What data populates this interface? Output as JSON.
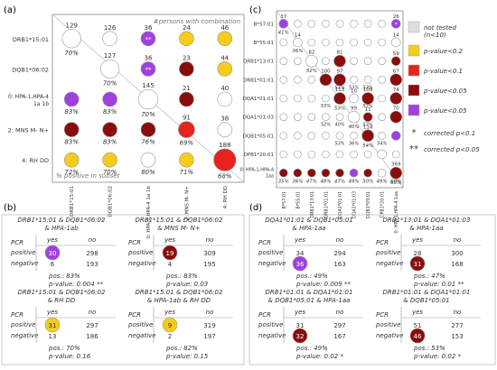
{
  "panel_labels": {
    "a": "(a)",
    "b": "(b)",
    "c": "(c)",
    "d": "(d)"
  },
  "colors": {
    "not_tested": "#dedede",
    "p02": "#f5cc1c",
    "p01": "#e8231f",
    "p005": "#8a0c0c",
    "corrected": "#a040e0",
    "outline": "#999999"
  },
  "legend": {
    "items": [
      {
        "label": "not tested",
        "label2": "(n<10)",
        "color": "#dedede"
      },
      {
        "label": "p-value<0.2",
        "color": "#f5cc1c"
      },
      {
        "label": "p-value<0.1",
        "color": "#e8231f"
      },
      {
        "label": "p-value<0.05",
        "color": "#8a0c0c"
      },
      {
        "label": "p-value<0.05",
        "color": "#a040e0"
      }
    ],
    "star1": "*",
    "star1_label": "corrected p<0.1",
    "star2": "**",
    "star2_label": "corrected p<0.05"
  },
  "chart_data": [
    {
      "type": "bubble-matrix",
      "panel": "a",
      "corner_top": "#persons with combination",
      "corner_bottom": "% positive in subset",
      "rows": [
        "DRB1*15:01",
        "DQB1*06:02",
        "0: HPA-1,HPA-4 1a 1b",
        "2: MNS M- N+",
        "4: RH DD"
      ],
      "cols": [
        "DRB1*15:01",
        "DQB1*06:02",
        "0: HPA-1,HPA-4 1a 1b",
        "2: MNS M- N+",
        "4: RH DD"
      ],
      "cells": [
        {
          "r": 0,
          "c": 0,
          "n": "129",
          "pct": "70%",
          "cat": "none"
        },
        {
          "r": 0,
          "c": 1,
          "n": "126",
          "pct": "",
          "cat": "none"
        },
        {
          "r": 0,
          "c": 2,
          "n": "36",
          "pct": "",
          "mark": "**",
          "cat": "corrected"
        },
        {
          "r": 0,
          "c": 3,
          "n": "24",
          "pct": "",
          "cat": "p02"
        },
        {
          "r": 0,
          "c": 4,
          "n": "46",
          "pct": "",
          "cat": "p02"
        },
        {
          "r": 1,
          "c": 1,
          "n": "127",
          "pct": "70%",
          "cat": "none"
        },
        {
          "r": 1,
          "c": 2,
          "n": "36",
          "pct": "",
          "mark": "**",
          "cat": "corrected"
        },
        {
          "r": 1,
          "c": 3,
          "n": "23",
          "pct": "",
          "cat": "p005"
        },
        {
          "r": 1,
          "c": 4,
          "n": "44",
          "pct": "",
          "cat": "p02"
        },
        {
          "r": 2,
          "c": 0,
          "n": "",
          "pct": "83%",
          "cat": "corrected"
        },
        {
          "r": 2,
          "c": 1,
          "n": "",
          "pct": "83%",
          "cat": "corrected"
        },
        {
          "r": 2,
          "c": 2,
          "n": "145",
          "pct": "70%",
          "cat": "none"
        },
        {
          "r": 2,
          "c": 3,
          "n": "21",
          "pct": "",
          "cat": "p005"
        },
        {
          "r": 2,
          "c": 4,
          "n": "40",
          "pct": "",
          "cat": "none"
        },
        {
          "r": 3,
          "c": 0,
          "n": "",
          "pct": "83%",
          "cat": "p005"
        },
        {
          "r": 3,
          "c": 1,
          "n": "",
          "pct": "83%",
          "cat": "p005"
        },
        {
          "r": 3,
          "c": 2,
          "n": "",
          "pct": "76%",
          "cat": "p005"
        },
        {
          "r": 3,
          "c": 3,
          "n": "91",
          "pct": "69%",
          "cat": "p01"
        },
        {
          "r": 3,
          "c": 4,
          "n": "38",
          "pct": "",
          "cat": "none"
        },
        {
          "r": 4,
          "c": 0,
          "n": "",
          "pct": "72%",
          "cat": "p02"
        },
        {
          "r": 4,
          "c": 1,
          "n": "",
          "pct": "70%",
          "cat": "p02"
        },
        {
          "r": 4,
          "c": 2,
          "n": "",
          "pct": "80%",
          "cat": "none"
        },
        {
          "r": 4,
          "c": 3,
          "n": "",
          "pct": "71%",
          "cat": "p02"
        },
        {
          "r": 4,
          "c": 4,
          "n": "188",
          "pct": "68%",
          "cat": "p01"
        }
      ]
    },
    {
      "type": "bubble-matrix",
      "panel": "c",
      "rows": [
        "B*57:01",
        "B*55:01",
        "DRB1*13:01",
        "DRB1*01:01",
        "DQA1*01:01",
        "DQA1*01:03",
        "DQB1*05:01",
        "DPB1*20:01",
        "0: HPA-1,HPA-4 1aa"
      ],
      "cols": [
        "B*57:01",
        "B*55:01",
        "DRB1*13:01",
        "DRB1*01:01",
        "DQA1*01:01",
        "DQA1*01:03",
        "DQB1*05:01",
        "DPB1*20:01",
        "0: HPA-1,HPA-4 1aa"
      ],
      "row_counts": [
        "",
        "",
        "",
        "",
        "",
        "",
        "",
        "",
        "369"
      ],
      "cells": [
        {
          "r": 0,
          "c": 0,
          "n": "37",
          "pct": "41%",
          "cat": "corrected"
        },
        {
          "r": 0,
          "c": 8,
          "n": "26",
          "pct": "",
          "mark": "*",
          "cat": "corrected"
        },
        {
          "r": 1,
          "c": 1,
          "n": "14",
          "pct": "36%",
          "cat": "none"
        },
        {
          "r": 1,
          "c": 8,
          "n": "14",
          "pct": "",
          "cat": "none"
        },
        {
          "r": 2,
          "c": 2,
          "n": "82",
          "pct": "52%",
          "cat": "none"
        },
        {
          "r": 2,
          "c": 4,
          "n": "81",
          "pct": "",
          "cat": "p005"
        },
        {
          "r": 2,
          "c": 8,
          "n": "59",
          "pct": "",
          "cat": "p005"
        },
        {
          "r": 3,
          "c": 3,
          "n": "100",
          "pct": "",
          "cat": "p005"
        },
        {
          "r": 3,
          "c": 4,
          "n": "97",
          "pct": "",
          "cat": "p005"
        },
        {
          "r": 3,
          "c": 8,
          "n": "67",
          "pct": "",
          "cat": "p005"
        },
        {
          "r": 4,
          "c": 4,
          "n": "113",
          "pct": "53%",
          "cat": "p005"
        },
        {
          "r": 4,
          "c": 5,
          "n": "10",
          "pct": "",
          "cat": "none"
        },
        {
          "r": 4,
          "c": 6,
          "n": "109",
          "pct": "",
          "cat": "p005"
        },
        {
          "r": 4,
          "c": 8,
          "n": "74",
          "pct": "",
          "cat": "p005"
        },
        {
          "r": 5,
          "c": 5,
          "n": "99",
          "pct": "40%",
          "cat": "none"
        },
        {
          "r": 5,
          "c": 6,
          "n": "11",
          "pct": "",
          "cat": "p005"
        },
        {
          "r": 5,
          "c": 8,
          "n": "70",
          "pct": "",
          "cat": "p005"
        },
        {
          "r": 6,
          "c": 6,
          "n": "114",
          "pct": "54%",
          "cat": "p005"
        },
        {
          "r": 6,
          "c": 8,
          "n": "",
          "pct": "",
          "cat": "corrected"
        },
        {
          "r": 7,
          "c": 7,
          "n": "",
          "pct": "",
          "cat": "none"
        },
        {
          "r": 8,
          "c": 8,
          "n": "369",
          "pct": "60%",
          "cat": "p005"
        }
      ],
      "other_pcts": [
        {
          "r": 3,
          "c": 4,
          "v": "53%"
        },
        {
          "r": 3,
          "c": 5,
          "v": "53%"
        },
        {
          "r": 3,
          "c": 6,
          "v": "53%"
        },
        {
          "r": 4,
          "c": 3,
          "v": "53%"
        },
        {
          "r": 4,
          "c": 6,
          "v": "53%"
        },
        {
          "r": 5,
          "c": 3,
          "v": "52%"
        },
        {
          "r": 5,
          "c": 4,
          "v": "40%"
        },
        {
          "r": 5,
          "c": 6,
          "v": "53%"
        },
        {
          "r": 6,
          "c": 4,
          "v": "53%"
        },
        {
          "r": 6,
          "c": 5,
          "v": "36%"
        },
        {
          "r": 6,
          "c": 7,
          "v": "54%"
        }
      ],
      "bottom_pcts": [
        "35%",
        "36%",
        "47%",
        "48%",
        "47%",
        "49%",
        "50%",
        "49%",
        "60%"
      ],
      "bottom_cats": [
        "p005",
        "p005",
        "p005",
        "p005",
        "p005",
        "corrected",
        "p005",
        "none",
        "p005"
      ]
    }
  ],
  "tables_b": [
    {
      "title": "DRB1*15:01 & DQB1*06:02",
      "title2": "& HPA-1ab",
      "hdr_yes": "yes",
      "hdr_no": "no",
      "row1": "positive",
      "row2": "negative",
      "row_hdr": "PCR",
      "c11": "30",
      "c12": "298",
      "c21": "6",
      "c22": "193",
      "pos": "pos.: 83%",
      "pval": "p-value: 0.004 **",
      "cat": "corrected"
    },
    {
      "title": "DRB1*15:01 & DQB1*06:02",
      "title2": "& MNS M- N+",
      "hdr_yes": "yes",
      "hdr_no": "no",
      "row1": "positive",
      "row2": "negative",
      "row_hdr": "PCR",
      "c11": "19",
      "c12": "309",
      "c21": "4",
      "c22": "195",
      "pos": "pos.: 83%",
      "pval": "p-value: 0.03",
      "cat": "p005"
    },
    {
      "title": "DRB1*15:01 & DQB1*06:02",
      "title2": "& RH DD",
      "hdr_yes": "yes",
      "hdr_no": "no",
      "row1": "positive",
      "row2": "negative",
      "row_hdr": "PCR",
      "c11": "31",
      "c12": "297",
      "c21": "13",
      "c22": "186",
      "pos": "pos.: 70%",
      "pval": "p-value: 0.16",
      "cat": "p02"
    },
    {
      "title": "DRB1*15:01 & DQB1*06:02",
      "title2": "& HPA-1ab & RH DD",
      "hdr_yes": "yes",
      "hdr_no": "no",
      "row1": "positive",
      "row2": "negative",
      "row_hdr": "PCR",
      "c11": "9",
      "c12": "319",
      "c21": "2",
      "c22": "197",
      "pos": "pos.: 82%",
      "pval": "p-value: 0.15",
      "cat": "p02"
    }
  ],
  "tables_d": [
    {
      "title": "DQA1*01:01 & DQB1*05:01",
      "title2": "& HPA-1aa",
      "hdr_yes": "yes",
      "hdr_no": "no",
      "row1": "positive",
      "row2": "negative",
      "row_hdr": "PCR",
      "c11": "34",
      "c12": "294",
      "c21": "36",
      "c22": "163",
      "pos": "pos.: 49%",
      "pval": "p-value: 0.009 **",
      "cat": "corrected",
      "circle": "c21"
    },
    {
      "title": "DRB1*13:01 & DQA1*01:03",
      "title2": "& HPA-1aa",
      "hdr_yes": "yes",
      "hdr_no": "no",
      "row1": "positive",
      "row2": "negative",
      "row_hdr": "PCR",
      "c11": "28",
      "c12": "300",
      "c21": "31",
      "c22": "168",
      "pos": "pos.: 47%",
      "pval": "p-value: 0.01 **",
      "cat": "p005",
      "circle": "c21"
    },
    {
      "title": "DRB1*01:01 & DQA1*01:01",
      "title2": "& DQB1*05:01 & HPA-1aa",
      "hdr_yes": "yes",
      "hdr_no": "no",
      "row1": "positive",
      "row2": "negative",
      "row_hdr": "PCR",
      "c11": "31",
      "c12": "297",
      "c21": "32",
      "c22": "167",
      "pos": "pos.: 49%",
      "pval": "p-value: 0.02 *",
      "cat": "p005",
      "circle": "c21"
    },
    {
      "title": "DRB1*01:01 & DQA1*01:01",
      "title2": "& DQB1*05:01",
      "hdr_yes": "yes",
      "hdr_no": "no",
      "row1": "positive",
      "row2": "negative",
      "row_hdr": "PCR",
      "c11": "51",
      "c12": "277",
      "c21": "46",
      "c22": "153",
      "pos": "pos.: 53%",
      "pval": "p-value: 0.02 *",
      "cat": "p005",
      "circle": "c21"
    }
  ]
}
